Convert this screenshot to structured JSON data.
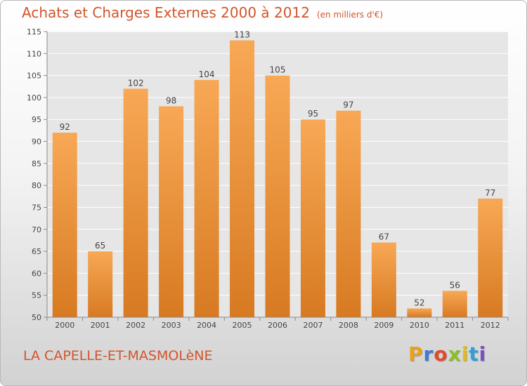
{
  "title": "Achats et Charges Externes 2000 à 2012",
  "unit": "(en milliers d'€)",
  "commune": "LA CAPELLE-ET-MASMOLèNE",
  "logo": {
    "letters": [
      "P",
      "r",
      "o",
      "x",
      "i",
      "t",
      "i"
    ],
    "colors": [
      "#e8a21b",
      "#3a7fd0",
      "#e24a2a",
      "#8bbf2a",
      "#e2bb1d",
      "#2fa0d8",
      "#7b4fc4"
    ]
  },
  "colors": {
    "title": "#d2552b",
    "bar_light": "#f7a653",
    "bar_dark": "#d87820"
  },
  "chart_data": {
    "type": "bar",
    "categories": [
      "2000",
      "2001",
      "2002",
      "2003",
      "2004",
      "2005",
      "2006",
      "2007",
      "2008",
      "2009",
      "2010",
      "2011",
      "2012"
    ],
    "values": [
      92,
      65,
      102,
      98,
      104,
      113,
      105,
      95,
      97,
      67,
      52,
      56,
      77
    ],
    "ylim": [
      50,
      115
    ],
    "yticks": [
      50,
      55,
      60,
      65,
      70,
      75,
      80,
      85,
      90,
      95,
      100,
      105,
      110,
      115
    ],
    "grid": true,
    "xlabel": "",
    "ylabel": ""
  }
}
